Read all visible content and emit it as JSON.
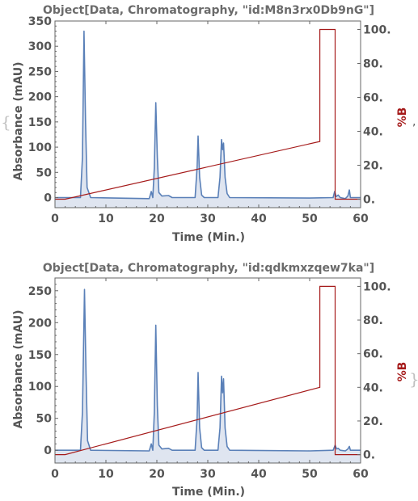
{
  "decorations": {
    "open_brace": "{",
    "close_brace": "}",
    "separator": ","
  },
  "colors": {
    "absorbance_line": "#5a80b8",
    "absorbance_fill": "#dfe5f0",
    "gradient_line": "#a51a1a",
    "frame": "#666666",
    "gradient_label": "#a51a1a"
  },
  "chart_data": [
    {
      "type": "line",
      "title": "Object[Data, Chromatography, \"id:M8n3rx0Db9nG\"]",
      "xlabel": "Time  (Min.)",
      "ylabel": "Absorbance  (mAU)",
      "ylabel_right": "%B",
      "xlim": [
        0,
        60
      ],
      "ylim": [
        -20,
        350
      ],
      "ylim_right": [
        -5,
        105
      ],
      "x_ticks": [
        "0",
        "10",
        "20",
        "30",
        "40",
        "50",
        "60"
      ],
      "y_ticks": [
        "0",
        "50",
        "100",
        "150",
        "200",
        "250",
        "300",
        "350"
      ],
      "y_ticks_right": [
        "0.",
        "20.",
        "40.",
        "60.",
        "80.",
        "100."
      ],
      "series": [
        {
          "role": "absorbance",
          "x": [
            0,
            5,
            5.4,
            5.7,
            6.0,
            6.3,
            7,
            18.5,
            18.9,
            19.2,
            19.5,
            19.8,
            20.1,
            20.4,
            21,
            22.3,
            23,
            27.5,
            27.9,
            28.1,
            28.4,
            28.8,
            29.3,
            32,
            32.4,
            32.7,
            32.9,
            33.1,
            33.4,
            33.8,
            34.3,
            50,
            54.6,
            54.9,
            55.2,
            55.6,
            56,
            57,
            57.5,
            57.8,
            58,
            60
          ],
          "y": [
            0,
            0,
            80,
            330,
            150,
            20,
            0,
            -2,
            12,
            0,
            60,
            188,
            80,
            10,
            3,
            4,
            0,
            0,
            60,
            122,
            40,
            5,
            0,
            0,
            40,
            115,
            95,
            108,
            40,
            8,
            0,
            -1,
            0,
            12,
            2,
            5,
            0,
            -2,
            3,
            15,
            0,
            0
          ]
        },
        {
          "role": "gradient",
          "x": [
            0,
            2,
            52,
            52,
            55,
            55,
            60
          ],
          "y": [
            0,
            0,
            34,
            100,
            100,
            0,
            0
          ]
        }
      ]
    },
    {
      "type": "line",
      "title": "Object[Data, Chromatography, \"id:qdkmxzqew7ka\"]",
      "xlabel": "Time  (Min.)",
      "ylabel": "Absorbance  (mAU)",
      "ylabel_right": "%B",
      "xlim": [
        0,
        60
      ],
      "ylim": [
        -20,
        270
      ],
      "ylim_right": [
        -5,
        105
      ],
      "x_ticks": [
        "0",
        "10",
        "20",
        "30",
        "40",
        "50",
        "60"
      ],
      "y_ticks": [
        "0",
        "50",
        "100",
        "150",
        "200",
        "250"
      ],
      "y_ticks_right": [
        "0.",
        "20.",
        "40.",
        "60.",
        "80.",
        "100."
      ],
      "series": [
        {
          "role": "absorbance",
          "x": [
            0,
            5,
            5.4,
            5.8,
            6.1,
            6.4,
            7,
            18.5,
            18.9,
            19.2,
            19.5,
            19.8,
            20.1,
            20.4,
            21,
            22.3,
            23,
            27.5,
            27.9,
            28.1,
            28.4,
            28.8,
            29.3,
            32,
            32.4,
            32.7,
            32.9,
            33.1,
            33.4,
            33.8,
            34.3,
            50,
            54.6,
            55.0,
            55.3,
            55.6,
            56,
            57,
            57.5,
            57.8,
            58,
            60
          ],
          "y": [
            0,
            0,
            60,
            252,
            120,
            15,
            0,
            -1,
            10,
            0,
            60,
            196,
            70,
            8,
            2,
            3,
            0,
            0,
            50,
            122,
            35,
            4,
            0,
            0,
            35,
            116,
            90,
            112,
            35,
            6,
            0,
            -1,
            0,
            8,
            2,
            3,
            0,
            -1,
            2,
            6,
            0,
            0
          ]
        },
        {
          "role": "gradient",
          "x": [
            0,
            2,
            52,
            52,
            55,
            55,
            60
          ],
          "y": [
            0,
            0,
            40,
            100,
            100,
            0,
            0
          ]
        }
      ]
    }
  ]
}
